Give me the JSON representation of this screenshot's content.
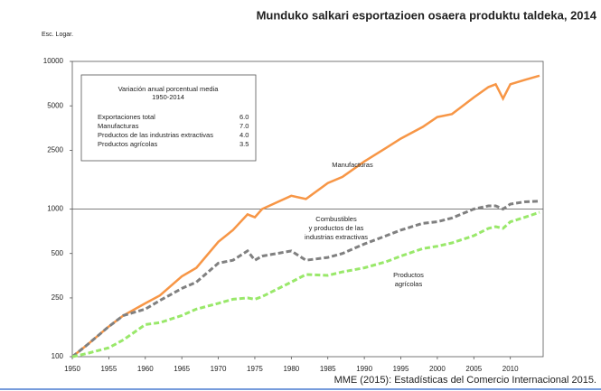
{
  "chart_data": {
    "type": "line",
    "title": "Munduko salkari esportazioen osaera produktu taldeka, 2014",
    "y_label": "Esc. Logar.",
    "source": "MME (2015): Estadísticas del Comercio Internacional 2015.",
    "log_scale": true,
    "x": [
      1950,
      1952,
      1955,
      1957,
      1960,
      1962,
      1965,
      1967,
      1970,
      1972,
      1974,
      1975,
      1976,
      1980,
      1982,
      1985,
      1987,
      1990,
      1993,
      1995,
      1998,
      2000,
      2002,
      2005,
      2007,
      2008,
      2009,
      2010,
      2012,
      2014
    ],
    "series": [
      {
        "name": "Manufacturas",
        "color": "#f79646",
        "dash": false,
        "values": [
          100,
          120,
          160,
          190,
          230,
          260,
          350,
          400,
          600,
          720,
          920,
          880,
          1000,
          1230,
          1170,
          1500,
          1650,
          2100,
          2600,
          3000,
          3600,
          4200,
          4400,
          5700,
          6700,
          7000,
          5600,
          7000,
          7500,
          8000
        ]
      },
      {
        "name": "Combustibles y productos de las industrias extractivas",
        "color": "#808080",
        "dash": true,
        "values": [
          100,
          120,
          160,
          190,
          210,
          240,
          290,
          320,
          430,
          450,
          520,
          450,
          480,
          520,
          450,
          470,
          500,
          580,
          660,
          720,
          800,
          820,
          870,
          1000,
          1050,
          1050,
          1000,
          1080,
          1120,
          1130
        ]
      },
      {
        "name": "Productos agrícolas",
        "color": "#99e86a",
        "dash": true,
        "values": [
          100,
          105,
          115,
          130,
          165,
          170,
          190,
          210,
          230,
          245,
          250,
          245,
          255,
          320,
          360,
          355,
          375,
          400,
          440,
          480,
          540,
          560,
          590,
          660,
          740,
          760,
          740,
          820,
          880,
          950
        ]
      }
    ],
    "annotations": [
      [
        "Manufacturas"
      ],
      [
        "Combustibles",
        "y productos de las",
        "industrias extractivas"
      ],
      [
        "Productos",
        "agrícolas"
      ]
    ],
    "xlim": [
      1950,
      2014
    ],
    "xticks": [
      1950,
      1955,
      1960,
      1965,
      1970,
      1975,
      1980,
      1985,
      1990,
      1995,
      2000,
      2005,
      2010
    ],
    "ylim": [
      100,
      10000
    ],
    "yticks": [
      100,
      250,
      500,
      1000,
      2500,
      5000,
      10000
    ],
    "reference_line": 1000,
    "summary": {
      "title": "Variación anual porcentual media",
      "period": "1950-2014",
      "labels": [
        "Exportaciones total",
        "Manufacturas",
        "Productos de las industrias extractivas",
        "Productos agrícolas"
      ],
      "values": [
        6.0,
        7.0,
        4.0,
        3.5
      ],
      "value_labels": [
        "6.0",
        "7.0",
        "4.0",
        "3.5"
      ]
    }
  }
}
